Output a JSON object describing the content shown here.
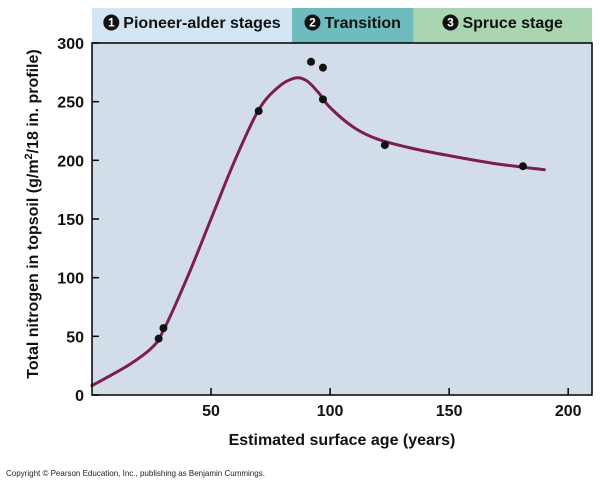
{
  "chart_data": {
    "type": "line",
    "title": "",
    "xlabel": "Estimated surface age (years)",
    "ylabel_main": "Total nitrogen in topsoil (g/m",
    "ylabel_sup": "2",
    "ylabel_end": "/18 in. profile)",
    "xlim": [
      0,
      210
    ],
    "ylim": [
      0,
      300
    ],
    "xticks": [
      50,
      100,
      150,
      200
    ],
    "yticks": [
      0,
      50,
      100,
      150,
      200,
      250,
      300
    ],
    "grid": false,
    "colors": {
      "plot_bg": "#d3dde9",
      "curve": "#7a1f4f",
      "points": "#111111",
      "stage1": "#d3e4f3",
      "stage2": "#6fbcbf",
      "stage3": "#a9d6b0"
    },
    "stages": [
      {
        "number": "1",
        "label": "Pioneer-alder stages",
        "x_start": 0,
        "x_end": 84
      },
      {
        "number": "2",
        "label": "Transition",
        "x_start": 84,
        "x_end": 135
      },
      {
        "number": "3",
        "label": "Spruce stage",
        "x_start": 135,
        "x_end": 210
      }
    ],
    "series": [
      {
        "kind": "points",
        "x": [
          28,
          30,
          70,
          92,
          97,
          97,
          123,
          181
        ],
        "y": [
          48,
          57,
          242,
          284,
          279,
          252,
          213,
          195
        ]
      },
      {
        "kind": "curve",
        "x": [
          0,
          15,
          25,
          30,
          40,
          50,
          60,
          70,
          78,
          85,
          90,
          95,
          100,
          110,
          120,
          135,
          150,
          170,
          190
        ],
        "y": [
          8,
          25,
          40,
          55,
          100,
          150,
          200,
          243,
          262,
          270,
          268,
          258,
          245,
          228,
          218,
          210,
          204,
          197,
          192
        ]
      }
    ]
  },
  "footer": {
    "copyright": "Copyright © Pearson Education, Inc., publishing as Benjamin Cummings."
  }
}
